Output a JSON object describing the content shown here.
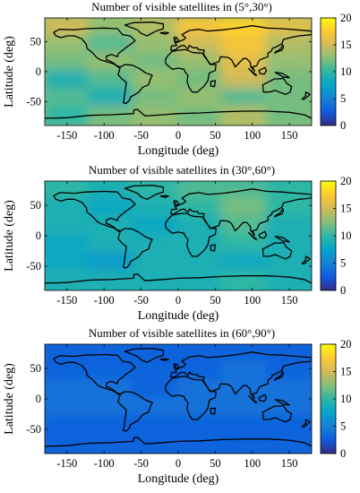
{
  "chart_data": [
    {
      "type": "heatmap",
      "title": "Number of visible satellites in (5°,30°)",
      "xlabel": "Longitude (deg)",
      "ylabel": "Latitude (deg)",
      "xlim": [
        -180,
        180
      ],
      "ylim": [
        -90,
        90
      ],
      "x_ticks": [
        -150,
        -100,
        -50,
        0,
        50,
        100,
        150
      ],
      "y_ticks": [
        50,
        0,
        -50
      ],
      "colorbar": {
        "min": 0,
        "max": 20,
        "ticks": [
          20,
          15,
          10,
          5,
          0
        ]
      },
      "value_grid": {
        "lon": [
          -150,
          -90,
          -30,
          30,
          90,
          150
        ],
        "lat": [
          75,
          45,
          15,
          -15,
          -45,
          -75
        ],
        "values": [
          [
            15,
            13,
            14,
            17,
            18,
            16
          ],
          [
            13,
            11,
            13,
            15,
            17,
            14
          ],
          [
            12,
            13,
            12,
            13,
            16,
            13
          ],
          [
            9,
            11,
            13,
            12,
            15,
            12
          ],
          [
            11,
            9,
            12,
            13,
            11,
            12
          ],
          [
            10,
            12,
            13,
            12,
            14,
            12
          ]
        ]
      }
    },
    {
      "type": "heatmap",
      "title": "Number of visible satellites in (30°,60°)",
      "xlabel": "Longitude (deg)",
      "ylabel": "Latitude (deg)",
      "xlim": [
        -180,
        180
      ],
      "ylim": [
        -90,
        90
      ],
      "x_ticks": [
        -150,
        -100,
        -50,
        0,
        50,
        100,
        150
      ],
      "y_ticks": [
        50,
        0,
        -50
      ],
      "colorbar": {
        "min": 0,
        "max": 20,
        "ticks": [
          20,
          15,
          10,
          5,
          0
        ]
      },
      "value_grid": {
        "lon": [
          -150,
          -90,
          -30,
          30,
          90,
          150
        ],
        "lat": [
          75,
          45,
          15,
          -15,
          -45,
          -75
        ],
        "values": [
          [
            10,
            9,
            10,
            11,
            11,
            10
          ],
          [
            9,
            8,
            9,
            10,
            12,
            10
          ],
          [
            9,
            9,
            8,
            9,
            11,
            9
          ],
          [
            8,
            9,
            9,
            9,
            10,
            9
          ],
          [
            8,
            7,
            9,
            9,
            8,
            9
          ],
          [
            9,
            9,
            9,
            9,
            10,
            9
          ]
        ]
      }
    },
    {
      "type": "heatmap",
      "title": "Number of visible satellites in (60°,90°)",
      "xlabel": "Longitude (deg)",
      "ylabel": "Latitude (deg)",
      "xlim": [
        -180,
        180
      ],
      "ylim": [
        -90,
        90
      ],
      "x_ticks": [
        -150,
        -100,
        -50,
        0,
        50,
        100,
        150
      ],
      "y_ticks": [
        50,
        0,
        -50
      ],
      "colorbar": {
        "min": 0,
        "max": 20,
        "ticks": [
          20,
          15,
          10,
          5,
          0
        ]
      },
      "value_grid": {
        "lon": [
          -150,
          -90,
          -30,
          30,
          90,
          150
        ],
        "lat": [
          75,
          45,
          15,
          -15,
          -45,
          -75
        ],
        "values": [
          [
            3,
            3,
            3,
            3,
            3,
            3
          ],
          [
            3,
            3,
            3,
            3,
            4,
            3
          ],
          [
            4,
            4,
            3,
            4,
            4,
            4
          ],
          [
            4,
            4,
            4,
            4,
            4,
            4
          ],
          [
            3,
            3,
            3,
            3,
            3,
            3
          ],
          [
            3,
            3,
            3,
            3,
            3,
            3
          ]
        ]
      }
    }
  ]
}
